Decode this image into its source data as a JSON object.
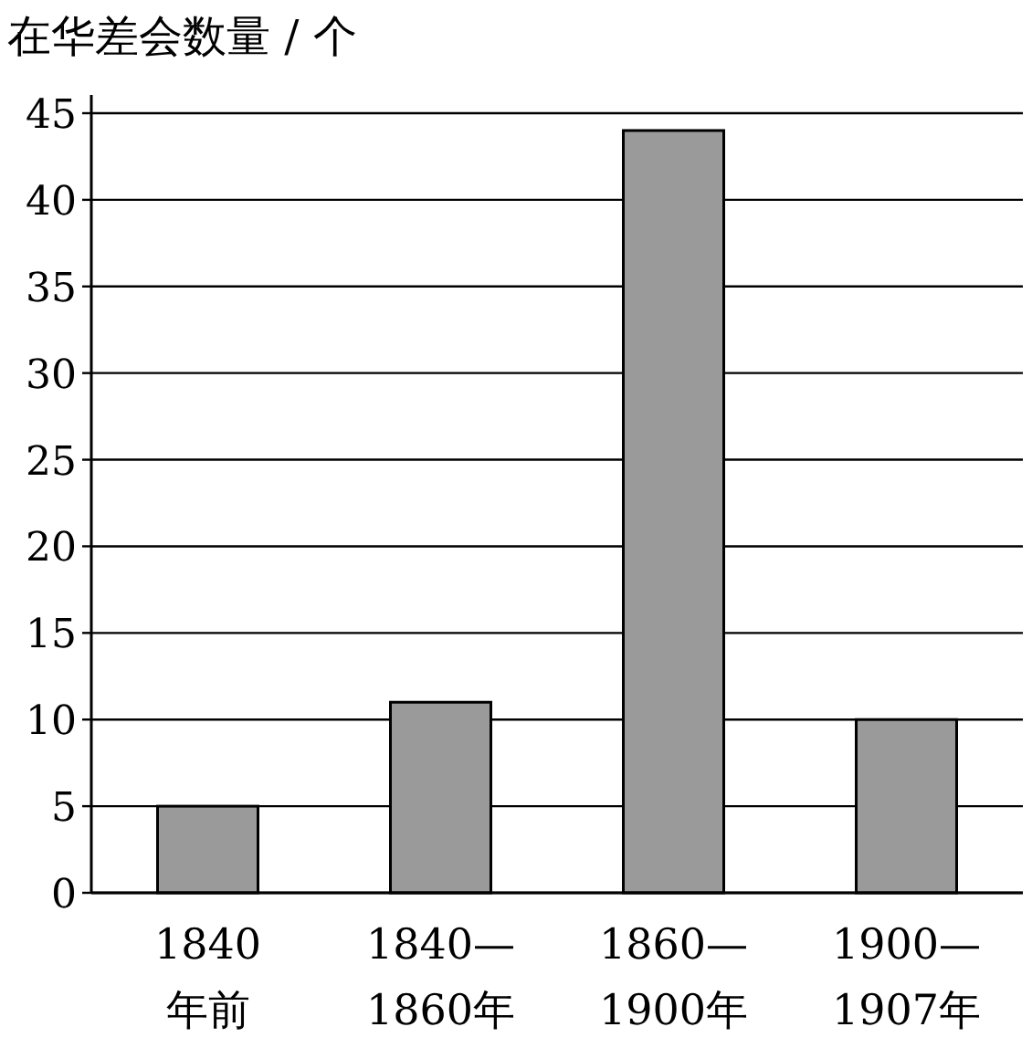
{
  "chart_data": {
    "type": "bar",
    "ylabel": "在华差会数量 / 个",
    "categories": [
      "1840\n年前",
      "1840—\n1860年",
      "1860—\n1900年",
      "1900—\n1907年"
    ],
    "values": [
      5,
      11,
      44,
      10
    ],
    "color": "#9a9a9a",
    "ylim": [
      0,
      45
    ],
    "yticks": [
      0,
      5,
      10,
      15,
      20,
      25,
      30,
      35,
      40,
      45
    ],
    "grid": "y"
  }
}
